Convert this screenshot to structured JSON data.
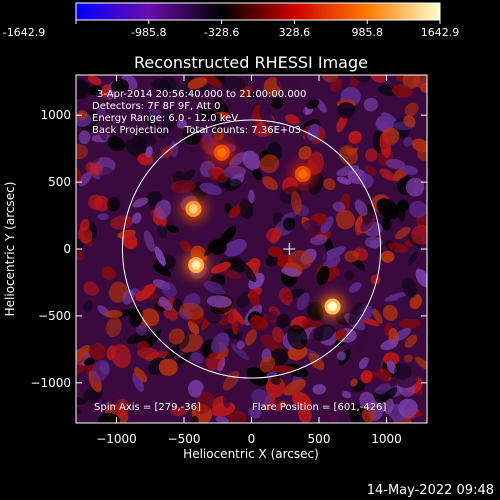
{
  "page": {
    "timestamp": "14-May-2022 09:48"
  },
  "colorbar": {
    "tick_labels": [
      "-1642.9",
      "-985.8",
      "-328.6",
      "328.6",
      "985.8",
      "1642.9"
    ],
    "range": [
      -1642.9,
      1642.9
    ],
    "colors": [
      "#0000ff",
      "#6a0dad",
      "#000000",
      "#cc0000",
      "#ff7a00",
      "#ffffcc"
    ]
  },
  "chart_data": {
    "type": "heatmap",
    "title": "Reconstructed RHESSI Image",
    "xlabel": "Heliocentric X (arcsec)",
    "ylabel": "Heliocentric Y (arcsec)",
    "xlim": [
      -1300,
      1300
    ],
    "ylim": [
      -1300,
      1300
    ],
    "xticks": [
      -1000,
      -500,
      0,
      500,
      1000
    ],
    "yticks": [
      -1000,
      -500,
      0,
      500,
      1000
    ],
    "xtick_labels": [
      "−1000",
      "−500",
      "0",
      "500",
      "1000"
    ],
    "ytick_labels": [
      "−1000",
      "−500",
      "0",
      "500",
      "1000"
    ],
    "solar_disk_radius_arcsec": 960,
    "map_center_marker": [
      280,
      0
    ],
    "bright_sources": [
      {
        "x": -430,
        "y": 300,
        "intensity": 1400
      },
      {
        "x": -410,
        "y": -120,
        "intensity": 1550
      },
      {
        "x": 600,
        "y": -430,
        "intensity": 1642.9
      },
      {
        "x": -220,
        "y": 720,
        "intensity": 950
      },
      {
        "x": 380,
        "y": 560,
        "intensity": 900
      }
    ],
    "info_lines": [
      "3-Apr-2014 20:56:40.000 to 21:00:00.000",
      "Detectors: 7F 8F 9F, Att 0",
      "Energy Range: 6.0 - 12.0 keV",
      "Back Projection     Total counts: 7.36E+03"
    ],
    "spin_axis_label": "Spin Axis = [279,-36]",
    "flare_position_label": "Flare Position = [601,-426]",
    "grid": false
  }
}
